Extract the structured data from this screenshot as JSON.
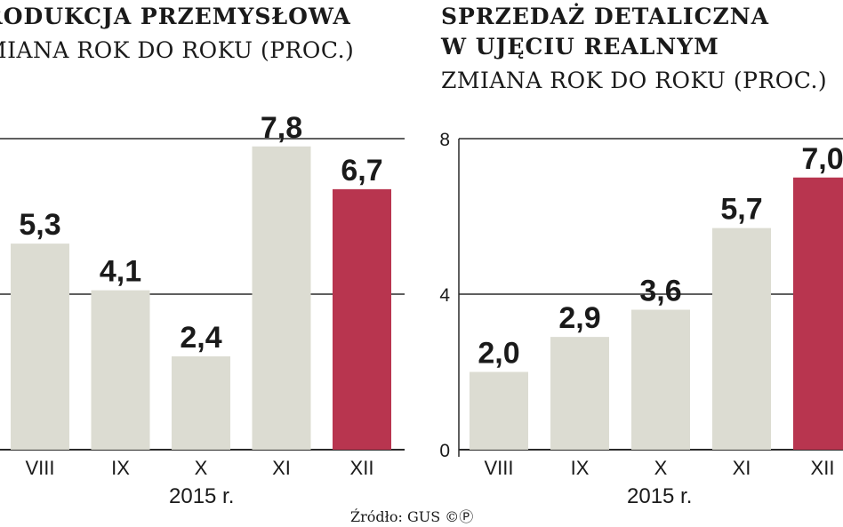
{
  "source": "Źródło: GUS ©Ⓟ",
  "chart_data": [
    {
      "type": "bar",
      "title": "rodukcja przemysłowa",
      "subtitle": "miana rok do roku (proc.)",
      "categories": [
        "VIII",
        "IX",
        "X",
        "XI",
        "XII"
      ],
      "values": [
        5.3,
        4.1,
        2.4,
        7.8,
        6.7
      ],
      "value_labels": [
        "5,3",
        "4,1",
        "2,4",
        "7,8",
        "6,7"
      ],
      "xlabel": "2015 r.",
      "ylim": [
        0,
        8
      ],
      "yticks": [],
      "grid": true,
      "colors": {
        "bar": "#dcdcd2",
        "highlight": "#b8354f"
      },
      "highlight_index": 4
    },
    {
      "type": "bar",
      "title": "Sprzedaż detaliczna",
      "title_line2": "w ujęciu realnym",
      "subtitle": "Zmiana rok do roku (proc.)",
      "categories": [
        "VIII",
        "IX",
        "X",
        "XI",
        "XII"
      ],
      "values": [
        2.0,
        2.9,
        3.6,
        5.7,
        7.0
      ],
      "value_labels": [
        "2,0",
        "2,9",
        "3,6",
        "5,7",
        "7,0"
      ],
      "xlabel": "2015 r.",
      "ylim": [
        0,
        8
      ],
      "yticks": [
        "0",
        "4",
        "8"
      ],
      "grid": true,
      "colors": {
        "bar": "#dcdcd2",
        "highlight": "#b8354f"
      },
      "highlight_index": 4
    }
  ]
}
